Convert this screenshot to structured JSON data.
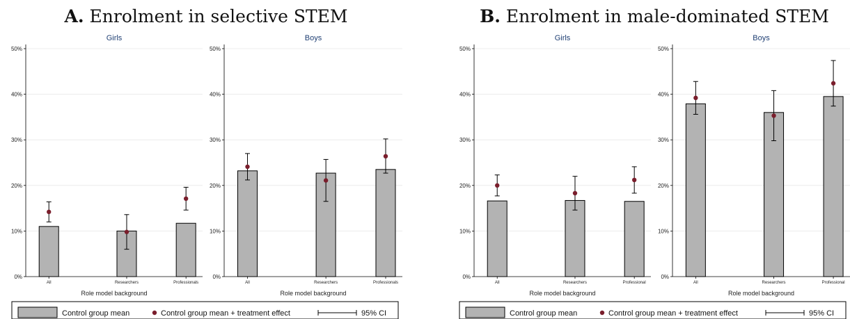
{
  "colors": {
    "bar_fill": "#b3b3b3",
    "bar_stroke": "#000000",
    "point": "#7a1e2c",
    "grid": "#ececec",
    "subtitle": "#1f3f73"
  },
  "legend": {
    "control": "Control group mean",
    "treated": "Control group mean + treatment effect",
    "ci": "95% CI"
  },
  "chart_data": [
    {
      "type": "bar",
      "title_letter": "A.",
      "title_text": " Enrolment in selective STEM",
      "xlabel": "Role model background",
      "ylim": [
        0,
        50
      ],
      "yticks": [
        "0%",
        "10%",
        "20%",
        "30%",
        "40%",
        "50%"
      ],
      "categories": [
        "All",
        "Researchers",
        "Professionals"
      ],
      "subplots": [
        {
          "name": "Girls",
          "control": [
            11.0,
            10.0,
            11.7
          ],
          "treated": [
            14.2,
            9.8,
            17.1
          ],
          "ci_low": [
            12.0,
            6.0,
            14.6
          ],
          "ci_high": [
            16.4,
            13.6,
            19.6
          ]
        },
        {
          "name": "Boys",
          "control": [
            23.2,
            22.7,
            23.5
          ],
          "treated": [
            24.1,
            21.1,
            26.4
          ],
          "ci_low": [
            21.2,
            16.5,
            22.7
          ],
          "ci_high": [
            27.0,
            25.7,
            30.2
          ]
        }
      ]
    },
    {
      "type": "bar",
      "title_letter": "B.",
      "title_text": " Enrolment in male-dominated STEM",
      "xlabel": "Role model background",
      "ylim": [
        0,
        50
      ],
      "yticks": [
        "0%",
        "10%",
        "20%",
        "30%",
        "40%",
        "50%"
      ],
      "categories": [
        "All",
        "Researchers",
        "Professional"
      ],
      "subplots": [
        {
          "name": "Girls",
          "control": [
            16.6,
            16.7,
            16.5
          ],
          "treated": [
            20.0,
            18.3,
            21.2
          ],
          "ci_low": [
            17.7,
            14.6,
            18.3
          ],
          "ci_high": [
            22.3,
            22.0,
            24.1
          ]
        },
        {
          "name": "Boys",
          "control": [
            37.9,
            36.0,
            39.5
          ],
          "treated": [
            39.2,
            35.3,
            42.4
          ],
          "ci_low": [
            35.6,
            29.8,
            37.4
          ],
          "ci_high": [
            42.8,
            40.8,
            47.4
          ]
        }
      ]
    }
  ]
}
